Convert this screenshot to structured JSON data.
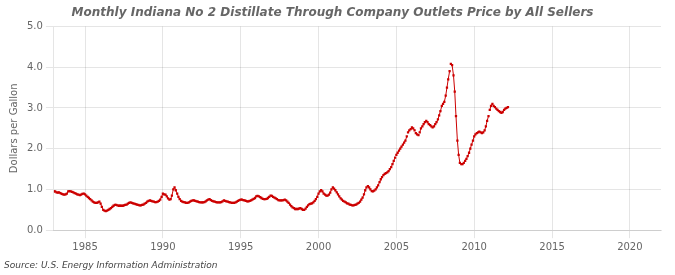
{
  "chart_data": {
    "type": "line",
    "title": "Monthly Indiana No 2 Distillate Through Company Outlets Price by All Sellers",
    "y_label": "Dollars per Gallon",
    "annotation": "Source: U.S. Energy Information Administration",
    "xlim": [
      1983,
      2022
    ],
    "xticks": [
      1985,
      1990,
      1995,
      2000,
      2005,
      2010,
      2015,
      2020
    ],
    "ylim": [
      0.0,
      5.0
    ],
    "yticks": [
      {
        "value": 0.0,
        "label": "0.0"
      },
      {
        "value": 1.0,
        "label": "1.0"
      },
      {
        "value": 2.0,
        "label": "2.0"
      },
      {
        "value": 3.0,
        "label": "3.0"
      },
      {
        "value": 4.0,
        "label": "4.0"
      },
      {
        "value": 5.0,
        "label": "5.0"
      }
    ],
    "grid": true,
    "marker": "square",
    "line_style": "solid",
    "series": [
      {
        "color": "#cc0000",
        "x": [
          1983.0,
          1983.08,
          1983.17,
          1983.25,
          1983.33,
          1983.42,
          1983.5,
          1983.58,
          1983.67,
          1983.75,
          1983.83,
          1983.92,
          1984.0,
          1984.08,
          1984.17,
          1984.25,
          1984.33,
          1984.42,
          1984.5,
          1984.58,
          1984.67,
          1984.75,
          1984.83,
          1984.92,
          1985.0,
          1985.08,
          1985.17,
          1985.25,
          1985.33,
          1985.42,
          1985.5,
          1985.58,
          1985.67,
          1985.75,
          1985.83,
          1985.92,
          1986.0,
          1986.08,
          1986.17,
          1986.25,
          1986.33,
          1986.42,
          1986.5,
          1986.58,
          1986.67,
          1986.75,
          1986.83,
          1986.92,
          1987.0,
          1987.08,
          1987.17,
          1987.25,
          1987.33,
          1987.42,
          1987.5,
          1987.58,
          1987.67,
          1987.75,
          1987.83,
          1987.92,
          1988.0,
          1988.08,
          1988.17,
          1988.25,
          1988.33,
          1988.42,
          1988.5,
          1988.58,
          1988.67,
          1988.75,
          1988.83,
          1988.92,
          1989.0,
          1989.08,
          1989.17,
          1989.25,
          1989.33,
          1989.42,
          1989.5,
          1989.58,
          1989.67,
          1989.75,
          1989.83,
          1989.92,
          1990.0,
          1990.08,
          1990.17,
          1990.25,
          1990.33,
          1990.42,
          1990.5,
          1990.58,
          1990.67,
          1990.75,
          1990.83,
          1990.92,
          1991.0,
          1991.08,
          1991.17,
          1991.25,
          1991.33,
          1991.42,
          1991.5,
          1991.58,
          1991.67,
          1991.75,
          1991.83,
          1991.92,
          1992.0,
          1992.08,
          1992.17,
          1992.25,
          1992.33,
          1992.42,
          1992.5,
          1992.58,
          1992.67,
          1992.75,
          1992.83,
          1992.92,
          1993.0,
          1993.08,
          1993.17,
          1993.25,
          1993.33,
          1993.42,
          1993.5,
          1993.58,
          1993.67,
          1993.75,
          1993.83,
          1993.92,
          1994.0,
          1994.08,
          1994.17,
          1994.25,
          1994.33,
          1994.42,
          1994.5,
          1994.58,
          1994.67,
          1994.75,
          1994.83,
          1994.92,
          1995.0,
          1995.08,
          1995.17,
          1995.25,
          1995.33,
          1995.42,
          1995.5,
          1995.58,
          1995.67,
          1995.75,
          1995.83,
          1995.92,
          1996.0,
          1996.08,
          1996.17,
          1996.25,
          1996.33,
          1996.42,
          1996.5,
          1996.58,
          1996.67,
          1996.75,
          1996.83,
          1996.92,
          1997.0,
          1997.08,
          1997.17,
          1997.25,
          1997.33,
          1997.42,
          1997.5,
          1997.58,
          1997.67,
          1997.75,
          1997.83,
          1997.92,
          1998.0,
          1998.08,
          1998.17,
          1998.25,
          1998.33,
          1998.42,
          1998.5,
          1998.58,
          1998.67,
          1998.75,
          1998.83,
          1998.92,
          1999.0,
          1999.08,
          1999.17,
          1999.25,
          1999.33,
          1999.42,
          1999.5,
          1999.58,
          1999.67,
          1999.75,
          1999.83,
          1999.92,
          2000.0,
          2000.08,
          2000.17,
          2000.25,
          2000.33,
          2000.42,
          2000.5,
          2000.58,
          2000.67,
          2000.75,
          2000.83,
          2000.92,
          2001.0,
          2001.08,
          2001.17,
          2001.25,
          2001.33,
          2001.42,
          2001.5,
          2001.58,
          2001.67,
          2001.75,
          2001.83,
          2001.92,
          2002.0,
          2002.08,
          2002.17,
          2002.25,
          2002.33,
          2002.42,
          2002.5,
          2002.58,
          2002.67,
          2002.75,
          2002.83,
          2002.92,
          2003.0,
          2003.08,
          2003.17,
          2003.25,
          2003.33,
          2003.42,
          2003.5,
          2003.58,
          2003.67,
          2003.75,
          2003.83,
          2003.92,
          2004.0,
          2004.08,
          2004.17,
          2004.25,
          2004.33,
          2004.42,
          2004.5,
          2004.58,
          2004.67,
          2004.75,
          2004.83,
          2004.92
        ],
        "values": [
          0.95,
          0.95,
          0.93,
          0.92,
          0.93,
          0.91,
          0.89,
          0.88,
          0.87,
          0.88,
          0.9,
          0.95,
          0.96,
          0.95,
          0.94,
          0.93,
          0.91,
          0.9,
          0.88,
          0.87,
          0.86,
          0.87,
          0.89,
          0.9,
          0.88,
          0.85,
          0.82,
          0.79,
          0.76,
          0.73,
          0.7,
          0.68,
          0.67,
          0.67,
          0.68,
          0.7,
          0.65,
          0.57,
          0.5,
          0.48,
          0.47,
          0.48,
          0.5,
          0.52,
          0.54,
          0.57,
          0.6,
          0.62,
          0.62,
          0.61,
          0.6,
          0.6,
          0.6,
          0.6,
          0.61,
          0.62,
          0.63,
          0.65,
          0.67,
          0.68,
          0.67,
          0.66,
          0.65,
          0.64,
          0.63,
          0.62,
          0.61,
          0.61,
          0.62,
          0.63,
          0.65,
          0.67,
          0.7,
          0.72,
          0.73,
          0.72,
          0.71,
          0.7,
          0.69,
          0.69,
          0.7,
          0.72,
          0.75,
          0.82,
          0.9,
          0.88,
          0.87,
          0.83,
          0.78,
          0.75,
          0.76,
          0.85,
          1.0,
          1.05,
          0.98,
          0.9,
          0.82,
          0.76,
          0.72,
          0.7,
          0.69,
          0.68,
          0.67,
          0.67,
          0.68,
          0.7,
          0.72,
          0.73,
          0.73,
          0.72,
          0.71,
          0.7,
          0.69,
          0.68,
          0.68,
          0.68,
          0.69,
          0.71,
          0.73,
          0.75,
          0.76,
          0.74,
          0.72,
          0.71,
          0.7,
          0.69,
          0.68,
          0.68,
          0.68,
          0.69,
          0.71,
          0.73,
          0.72,
          0.71,
          0.7,
          0.69,
          0.68,
          0.67,
          0.67,
          0.67,
          0.68,
          0.7,
          0.72,
          0.74,
          0.75,
          0.75,
          0.74,
          0.73,
          0.72,
          0.71,
          0.71,
          0.72,
          0.73,
          0.75,
          0.77,
          0.79,
          0.83,
          0.84,
          0.83,
          0.81,
          0.79,
          0.77,
          0.76,
          0.76,
          0.77,
          0.79,
          0.82,
          0.85,
          0.84,
          0.82,
          0.8,
          0.78,
          0.76,
          0.74,
          0.73,
          0.73,
          0.73,
          0.74,
          0.75,
          0.73,
          0.7,
          0.67,
          0.63,
          0.59,
          0.56,
          0.54,
          0.52,
          0.52,
          0.52,
          0.53,
          0.54,
          0.52,
          0.5,
          0.5,
          0.53,
          0.57,
          0.61,
          0.64,
          0.65,
          0.66,
          0.68,
          0.72,
          0.76,
          0.82,
          0.9,
          0.95,
          0.98,
          0.95,
          0.9,
          0.87,
          0.85,
          0.85,
          0.87,
          0.92,
          1.0,
          1.05,
          1.02,
          0.98,
          0.93,
          0.88,
          0.83,
          0.78,
          0.75,
          0.72,
          0.7,
          0.68,
          0.66,
          0.65,
          0.63,
          0.62,
          0.61,
          0.61,
          0.62,
          0.63,
          0.65,
          0.67,
          0.7,
          0.75,
          0.8,
          0.88,
          0.98,
          1.05,
          1.08,
          1.05,
          1.0,
          0.96,
          0.95,
          0.97,
          1.0,
          1.05,
          1.1,
          1.18,
          1.25,
          1.3,
          1.35,
          1.38,
          1.4,
          1.42,
          1.45,
          1.5,
          1.55,
          1.62,
          1.7,
          1.78
        ]
      },
      {
        "color": "#cc0000",
        "x": [
          2005.0,
          2005.08,
          2005.17,
          2005.25,
          2005.33,
          2005.42,
          2005.5,
          2005.58,
          2005.67
        ],
        "values": [
          1.85,
          1.9,
          1.95,
          2.0,
          2.05,
          2.1,
          2.15,
          2.2,
          2.3
        ]
      },
      {
        "color": "#cc0000",
        "x": [
          2005.75,
          2005.83,
          2005.92,
          2006.0,
          2006.08,
          2006.17
        ],
        "values": [
          2.4,
          2.45,
          2.48,
          2.52,
          2.5,
          2.45
        ]
      },
      {
        "color": "#cc0000",
        "x": [
          2006.25,
          2006.33,
          2006.42
        ],
        "values": [
          2.38,
          2.35,
          2.33
        ]
      },
      {
        "color": "#cc0000",
        "x": [
          2006.5,
          2006.58,
          2006.67,
          2006.75,
          2006.83,
          2006.92,
          2007.0,
          2007.08,
          2007.17,
          2007.25
        ],
        "values": [
          2.4,
          2.5,
          2.55,
          2.6,
          2.65,
          2.68,
          2.65,
          2.6,
          2.58,
          2.55
        ]
      },
      {
        "color": "#cc0000",
        "x": [
          2007.33,
          2007.42,
          2007.5,
          2007.58,
          2007.67,
          2007.75,
          2007.83,
          2007.92,
          2008.0,
          2008.08,
          2008.17,
          2008.25,
          2008.33,
          2008.42
        ],
        "values": [
          2.52,
          2.55,
          2.6,
          2.65,
          2.72,
          2.82,
          2.92,
          3.05,
          3.1,
          3.15,
          3.3,
          3.5,
          3.7,
          3.9
        ]
      },
      {
        "color": "#cc0000",
        "x": [
          2008.5
        ],
        "values": [
          4.08
        ]
      },
      {
        "color": "#cc0000",
        "x": [
          2008.58,
          2008.67,
          2008.75,
          2008.83,
          2008.92,
          2009.0,
          2009.08
        ],
        "values": [
          4.05,
          3.8,
          3.4,
          2.8,
          2.2,
          1.85,
          1.65
        ]
      },
      {
        "color": "#cc0000",
        "x": [
          2009.17,
          2009.25
        ],
        "values": [
          1.62,
          1.62
        ]
      },
      {
        "color": "#cc0000",
        "x": [
          2009.33,
          2009.42,
          2009.5,
          2009.58,
          2009.67,
          2009.75,
          2009.83,
          2009.92,
          2010.0,
          2010.08,
          2010.17,
          2010.25,
          2010.33,
          2010.42,
          2010.5,
          2010.58,
          2010.67,
          2010.75,
          2010.83,
          2010.92
        ],
        "values": [
          1.65,
          1.7,
          1.75,
          1.82,
          1.9,
          2.0,
          2.1,
          2.2,
          2.3,
          2.35,
          2.38,
          2.4,
          2.42,
          2.4,
          2.38,
          2.4,
          2.45,
          2.55,
          2.68,
          2.8
        ]
      },
      {
        "color": "#cc0000",
        "x": [
          2011.0,
          2011.08,
          2011.17
        ],
        "values": [
          2.95,
          3.05,
          3.1
        ]
      },
      {
        "color": "#cc0000",
        "x": [
          2011.25,
          2011.33,
          2011.42,
          2011.5,
          2011.58,
          2011.67,
          2011.75,
          2011.83,
          2011.92,
          2012.0,
          2012.08,
          2012.17
        ],
        "values": [
          3.05,
          3.02,
          2.98,
          2.95,
          2.92,
          2.9,
          2.88,
          2.9,
          2.95,
          2.98,
          3.0,
          3.02
        ]
      }
    ]
  }
}
